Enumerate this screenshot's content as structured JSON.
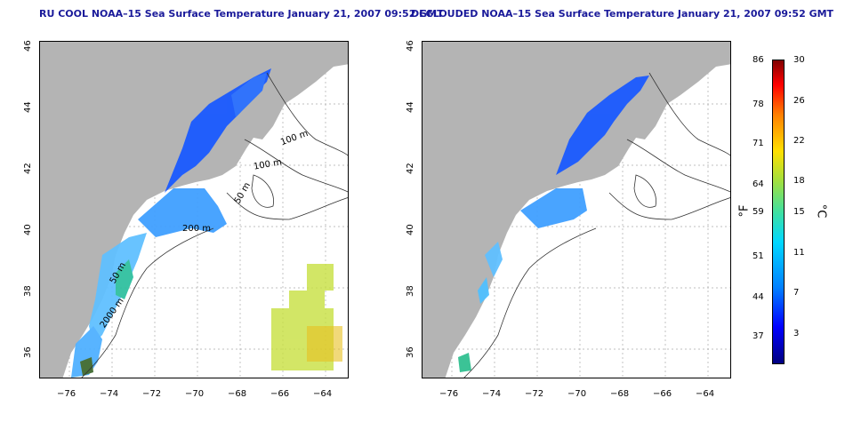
{
  "panels": [
    {
      "title": "RU COOL NOAA–15 Sea Surface Temperature January 21, 2007 09:52 GMT"
    },
    {
      "title": "DECLOUDED NOAA–15 Sea Surface Temperature January 21, 2007 09:52 GMT"
    }
  ],
  "axes": {
    "x_ticks": [
      "−76",
      "−74",
      "−72",
      "−70",
      "−68",
      "−66",
      "−64"
    ],
    "y_ticks": [
      "46",
      "44",
      "42",
      "40",
      "38",
      "36"
    ]
  },
  "contour_labels": [
    "100 m",
    "100 m",
    "50 m",
    "200 m",
    "50 m",
    "2000 m"
  ],
  "colorbar": {
    "fahrenheit_unit": "°F",
    "celsius_unit": "°C",
    "fahrenheit_ticks": [
      "86",
      "78",
      "71",
      "64",
      "59",
      "51",
      "44",
      "37"
    ],
    "celsius_ticks": [
      "30",
      "26",
      "22",
      "18",
      "15",
      "11",
      "7",
      "3"
    ]
  },
  "colors": {
    "land": "#b4b4b4",
    "title": "#1a1a9a",
    "cold": "#1a5aff",
    "mid": "#40b0ff",
    "warm": "#c8e040"
  }
}
